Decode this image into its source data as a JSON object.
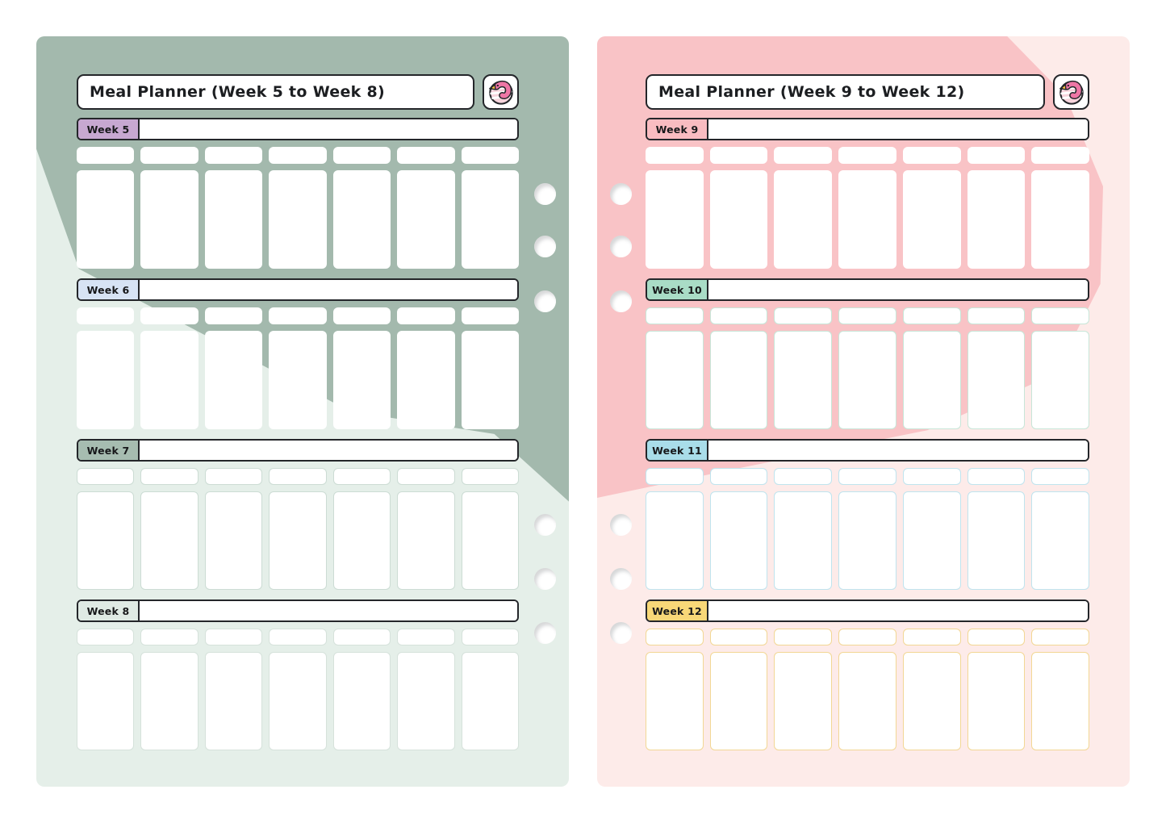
{
  "spread": {
    "days_per_week": 7,
    "binder_holes_per_page": 6,
    "outline_color": "#24262a",
    "flamingo_icon": {
      "name": "flamingo-icon",
      "body_color": "#ee76a5",
      "circle_color": "#f7d4dc",
      "beak_color": "#f3c145"
    },
    "pages": [
      {
        "title": "Meal Planner (Week 5 to Week 8)",
        "holes_side": "right",
        "theme": {
          "base": "#e5efe9",
          "accent": "#a3b9ad"
        },
        "weeks": [
          {
            "label": "Week 5",
            "label_color": "#c7a8d1",
            "cell_border_color": "transparent"
          },
          {
            "label": "Week 6",
            "label_color": "#d7e3f4",
            "cell_border_color": "transparent"
          },
          {
            "label": "Week 7",
            "label_color": "#a6bcb0",
            "cell_border_color": "#ccdcd4"
          },
          {
            "label": "Week 8",
            "label_color": "#dfeae4",
            "cell_border_color": "#d6e2db"
          }
        ]
      },
      {
        "title": "Meal Planner (Week 9 to Week 12)",
        "holes_side": "left",
        "theme": {
          "base": "#fdebe9",
          "accent": "#f9c3c6"
        },
        "weeks": [
          {
            "label": "Week 9",
            "label_color": "#f9bcc1",
            "cell_border_color": "transparent"
          },
          {
            "label": "Week 10",
            "label_color": "#a9dcc6",
            "cell_border_color": "#c7e6d8"
          },
          {
            "label": "Week 11",
            "label_color": "#a9dde9",
            "cell_border_color": "#bfe4ee"
          },
          {
            "label": "Week 12",
            "label_color": "#f8d878",
            "cell_border_color": "#f2d795"
          }
        ]
      }
    ]
  }
}
